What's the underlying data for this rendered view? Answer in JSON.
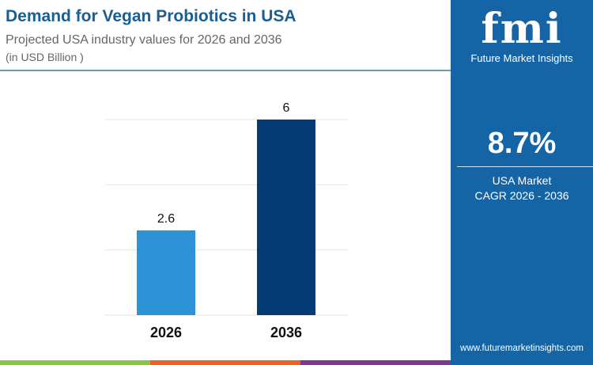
{
  "header": {
    "title": "Demand for Vegan Probiotics in USA",
    "subtitle": "Projected USA industry values for 2026 and 2036",
    "unit": "(in USD Billion )"
  },
  "panel": {
    "logo_text": "fmi",
    "logo_caption": "Future Market Insights",
    "cagr_value": "8.7%",
    "cagr_label_1": "USA Market",
    "cagr_label_2": "CAGR 2026 - 2036",
    "url": "www.futuremarketinsights.com",
    "color": "#1565a6"
  },
  "stripe_colors": [
    "#8bc34a",
    "#e8632b",
    "#7b3a8c"
  ],
  "chart_data": {
    "type": "bar",
    "categories": [
      "2026",
      "2036"
    ],
    "values": [
      2.6,
      6
    ],
    "labels": [
      "2.6",
      "6"
    ],
    "colors": [
      "#2d93d6",
      "#053b74"
    ],
    "ylim": [
      0,
      6
    ],
    "grid": true,
    "title": "",
    "xlabel": "",
    "ylabel": ""
  }
}
